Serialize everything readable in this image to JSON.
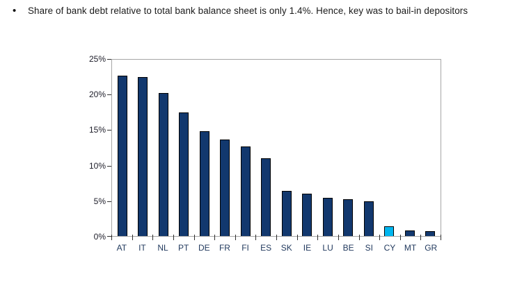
{
  "bullet": {
    "marker": "•",
    "text": "Share of bank debt relative to total bank balance sheet is only 1.4%. Hence, key was to bail-in depositors"
  },
  "chart_data": {
    "type": "bar",
    "title": "",
    "xlabel": "",
    "ylabel": "",
    "categories": [
      "AT",
      "IT",
      "NL",
      "PT",
      "DE",
      "FR",
      "FI",
      "ES",
      "SK",
      "IE",
      "LU",
      "BE",
      "SI",
      "CY",
      "MT",
      "GR"
    ],
    "values": [
      22.7,
      22.5,
      20.3,
      17.5,
      14.9,
      13.7,
      12.7,
      11.0,
      6.4,
      6.0,
      5.4,
      5.2,
      4.9,
      1.4,
      0.8,
      0.7
    ],
    "ylim": [
      0,
      25
    ],
    "yticks": [
      0,
      5,
      10,
      15,
      20,
      25
    ],
    "ytick_labels": [
      "0%",
      "5%",
      "10%",
      "15%",
      "20%",
      "25%"
    ],
    "grid": false,
    "legend": false,
    "bar_color": "#12386e",
    "bar_border_color": "#000000",
    "highlight": {
      "category": "CY",
      "color": "#00b6ef"
    },
    "plot_border_color": "#a6a6a6",
    "tick_color": "#2e2e2e",
    "ytick_label_color": "#1c1c28",
    "xtick_label_color": "#223a5e"
  }
}
